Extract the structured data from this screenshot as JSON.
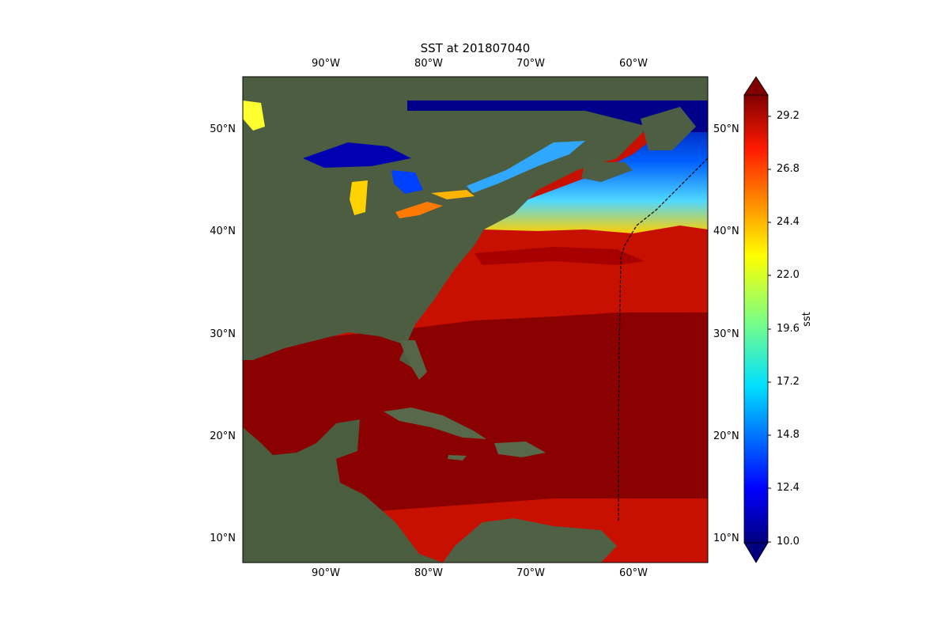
{
  "title": "SST at 201807040",
  "lon_ticks": [
    "90°W",
    "80°W",
    "70°W",
    "60°W"
  ],
  "lat_ticks": [
    "50°N",
    "40°N",
    "30°N",
    "20°N",
    "10°N"
  ],
  "colorbar": {
    "label": "sst",
    "ticks": [
      "29.2",
      "26.8",
      "24.4",
      "22.0",
      "19.6",
      "17.2",
      "14.8",
      "12.4",
      "10.0"
    ],
    "vmin": 10.0,
    "vmax": 30.4,
    "colormap": "jet",
    "extend": "both"
  },
  "map": {
    "extent_lon": [
      -98,
      -53
    ],
    "extent_lat": [
      8,
      55
    ],
    "track": "dashed black line",
    "colors": {
      "land": "#4a5a40",
      "warm_sea": "#8b0000",
      "cold_sea": "#00008b"
    }
  }
}
